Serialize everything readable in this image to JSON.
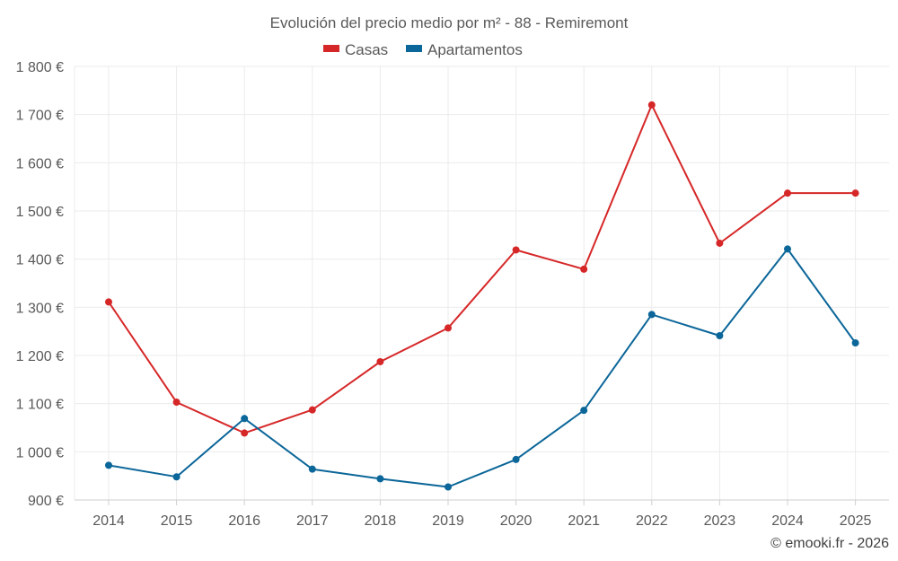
{
  "chart_data": {
    "type": "line",
    "title": "Evolución del precio medio por m² - 88 - Remiremont",
    "categories": [
      "2014",
      "2015",
      "2016",
      "2017",
      "2018",
      "2019",
      "2020",
      "2021",
      "2022",
      "2023",
      "2024",
      "2025"
    ],
    "series": [
      {
        "name": "Casas",
        "color": "#d62728",
        "values": [
          1311,
          1103,
          1039,
          1087,
          1187,
          1257,
          1419,
          1379,
          1720,
          1433,
          1537,
          1537
        ]
      },
      {
        "name": "Apartamentos",
        "color": "#0b6699",
        "values": [
          972,
          948,
          1069,
          964,
          944,
          927,
          984,
          1086,
          1285,
          1241,
          1421,
          1226
        ]
      }
    ],
    "ylim": [
      900,
      1800
    ],
    "yticks": [
      900,
      1000,
      1100,
      1200,
      1300,
      1400,
      1500,
      1600,
      1700,
      1800
    ],
    "ytick_labels": [
      "900 €",
      "1 000 €",
      "1 100 €",
      "1 200 €",
      "1 300 €",
      "1 400 €",
      "1 500 €",
      "1 600 €",
      "1 700 €",
      "1 800 €"
    ],
    "xlabel": "",
    "ylabel": "",
    "legend_position": "top-center",
    "grid": true
  },
  "credit": "© emooki.fr - 2026"
}
